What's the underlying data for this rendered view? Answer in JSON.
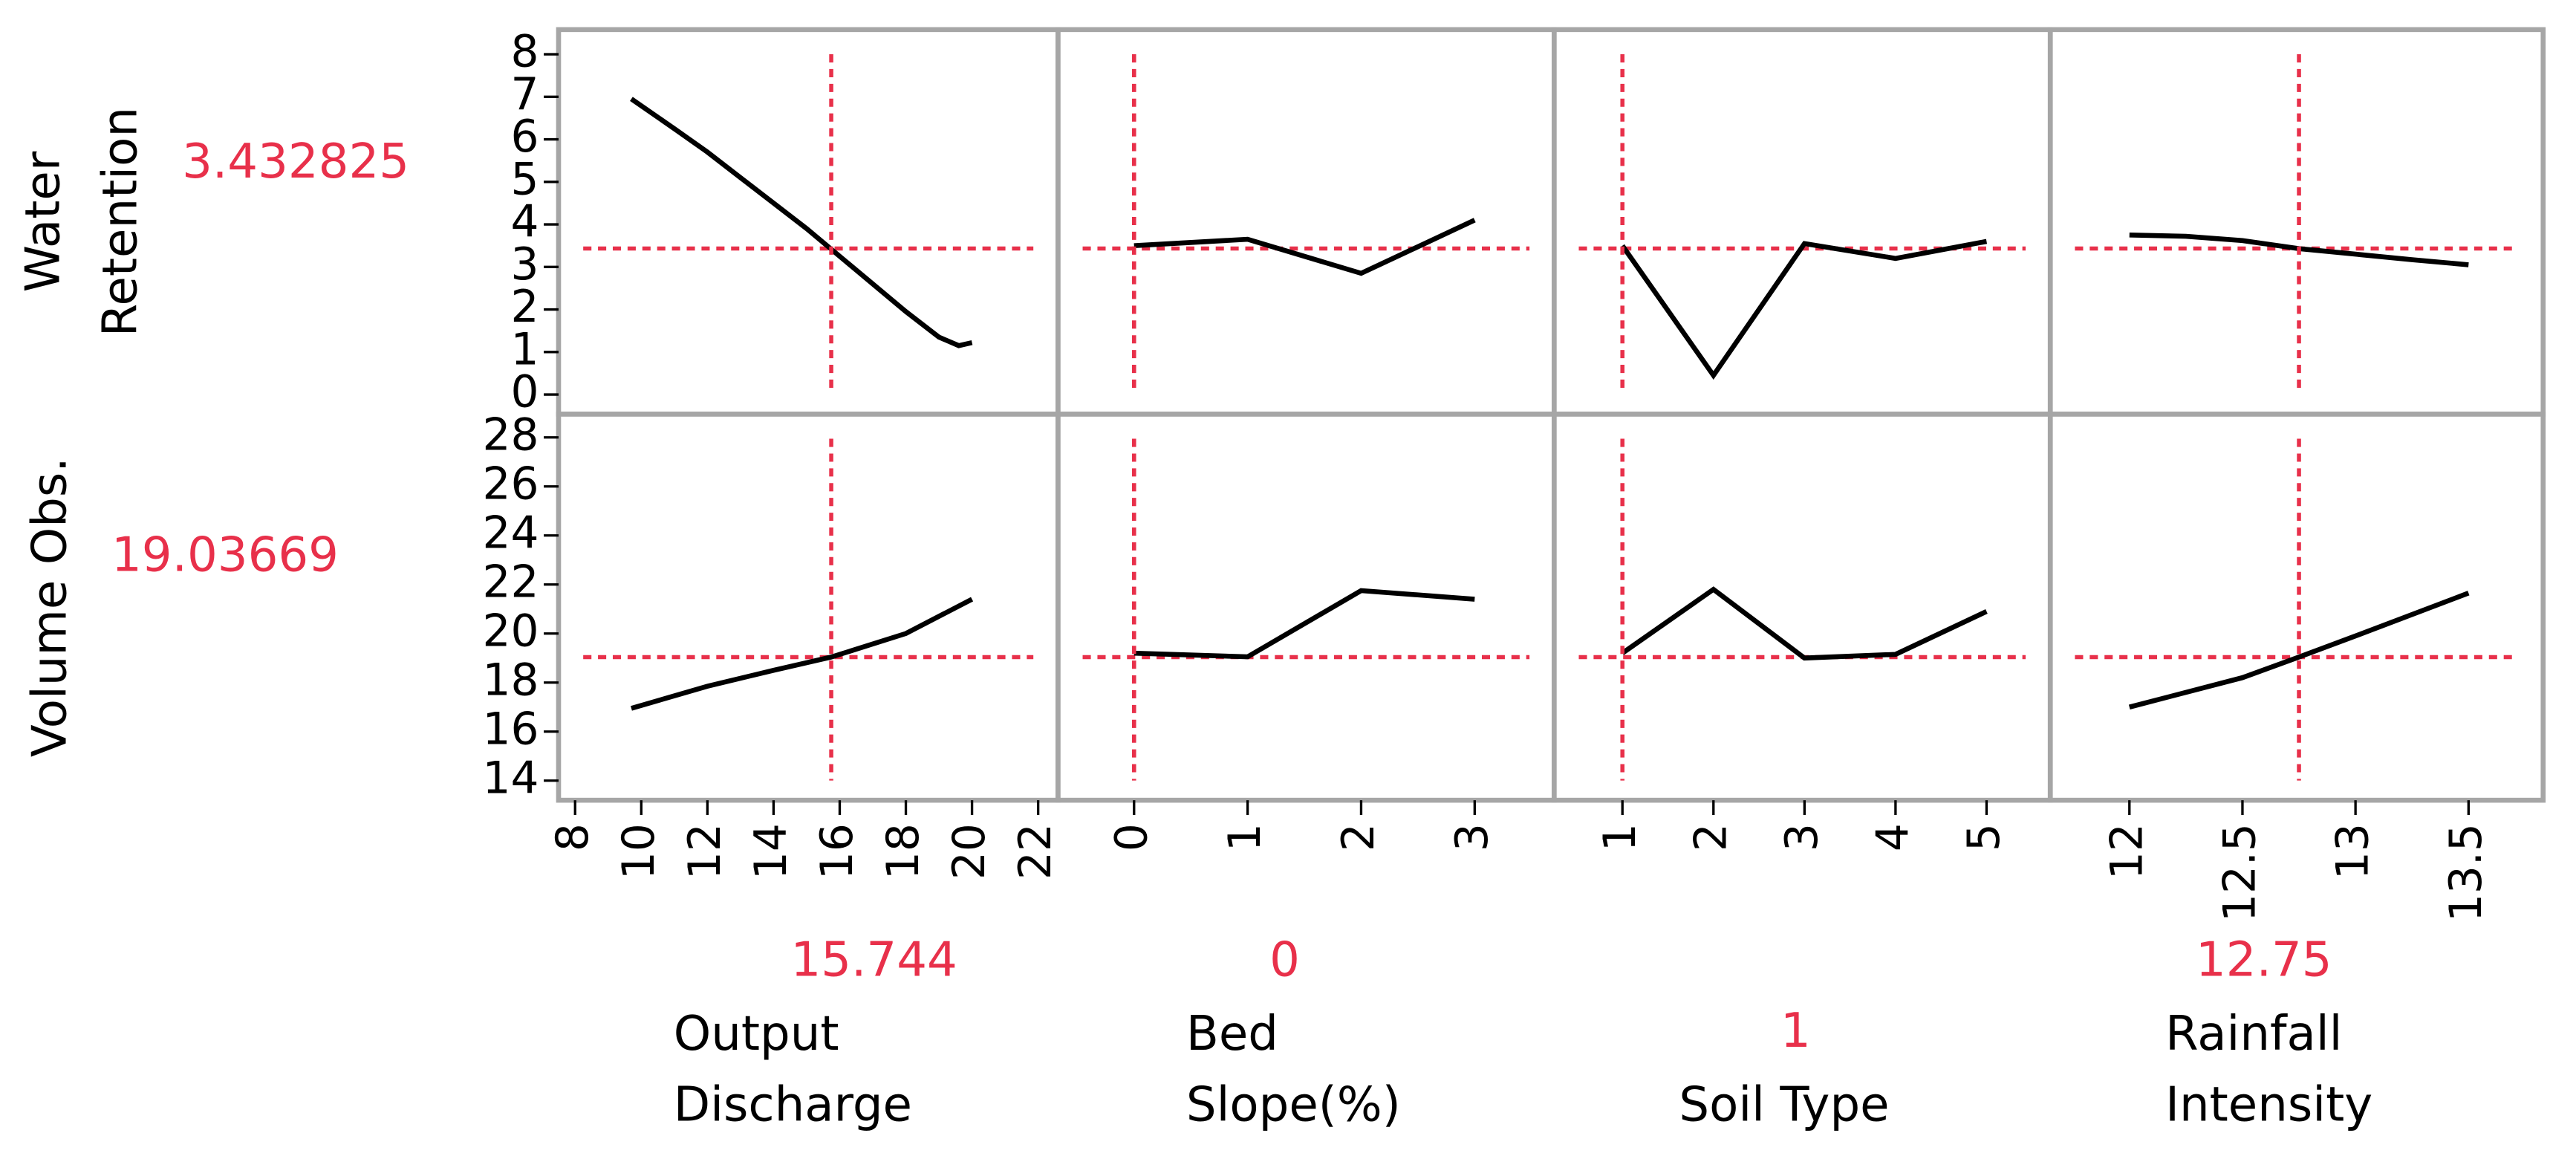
{
  "chart_data": {
    "type": "profiler",
    "line_color": "#000000",
    "reference_color": "#e8304a",
    "responses": [
      {
        "name": [
          "Water",
          "Retention"
        ],
        "current": 3.432825,
        "ylim": [
          -0.46,
          8.58
        ],
        "yticks": [
          0,
          1,
          2,
          3,
          4,
          5,
          6,
          7,
          8
        ],
        "curves": [
          {
            "x": [
              9.7,
              11,
              12,
              13,
              14,
              15,
              16,
              17,
              18,
              19,
              19.6,
              20
            ],
            "values": [
              6.95,
              6.25,
              5.7,
              5.1,
              4.5,
              3.9,
              3.25,
              2.6,
              1.95,
              1.35,
              1.15,
              1.22
            ]
          },
          {
            "x": [
              0,
              1,
              2,
              3
            ],
            "values": [
              3.5,
              3.65,
              2.85,
              4.1
            ]
          },
          {
            "x": [
              1,
              2,
              3,
              4,
              5
            ],
            "values": [
              3.5,
              0.45,
              3.55,
              3.2,
              3.6
            ]
          },
          {
            "x": [
              12,
              12.25,
              12.5,
              12.75,
              13,
              13.25,
              13.5
            ],
            "values": [
              3.75,
              3.72,
              3.62,
              3.43,
              3.3,
              3.17,
              3.05
            ]
          }
        ]
      },
      {
        "name": [
          "Volume Obs."
        ],
        "current": 19.03669,
        "ylim": [
          13.2,
          28.95
        ],
        "yticks": [
          14,
          16,
          18,
          20,
          22,
          24,
          26,
          28
        ],
        "curves": [
          {
            "x": [
              9.7,
              12,
              14,
              15.744,
              18,
              20
            ],
            "values": [
              16.95,
              17.85,
              18.5,
              19.04,
              20.0,
              21.4
            ]
          },
          {
            "x": [
              0,
              1,
              2,
              3
            ],
            "values": [
              19.2,
              19.05,
              21.75,
              21.4
            ]
          },
          {
            "x": [
              1,
              2,
              3,
              4,
              5
            ],
            "values": [
              19.2,
              21.8,
              19.0,
              19.15,
              20.9
            ]
          },
          {
            "x": [
              12,
              12.5,
              12.75,
              13,
              13.5
            ],
            "values": [
              17.0,
              18.2,
              19.04,
              19.9,
              21.65
            ]
          }
        ]
      }
    ],
    "factors": [
      {
        "name": [
          "Output",
          "Discharge"
        ],
        "current": 15.744,
        "xlim": [
          7.5,
          22.6
        ],
        "xticks": [
          8,
          10,
          12,
          14,
          16,
          18,
          20,
          22
        ]
      },
      {
        "name": [
          "Bed",
          "Slope(%)"
        ],
        "current": 0,
        "xlim": [
          -0.67,
          3.7
        ],
        "xticks": [
          0,
          1,
          2,
          3
        ]
      },
      {
        "name": [
          "Soil Type"
        ],
        "current": 1,
        "xlim": [
          0.25,
          5.7
        ],
        "xticks": [
          1,
          2,
          3,
          4,
          5
        ]
      },
      {
        "name": [
          "Rainfall",
          "Intensity"
        ],
        "current": 12.75,
        "xlim": [
          11.65,
          13.83
        ],
        "xticks": [
          12,
          12.5,
          13,
          13.5
        ]
      }
    ]
  }
}
